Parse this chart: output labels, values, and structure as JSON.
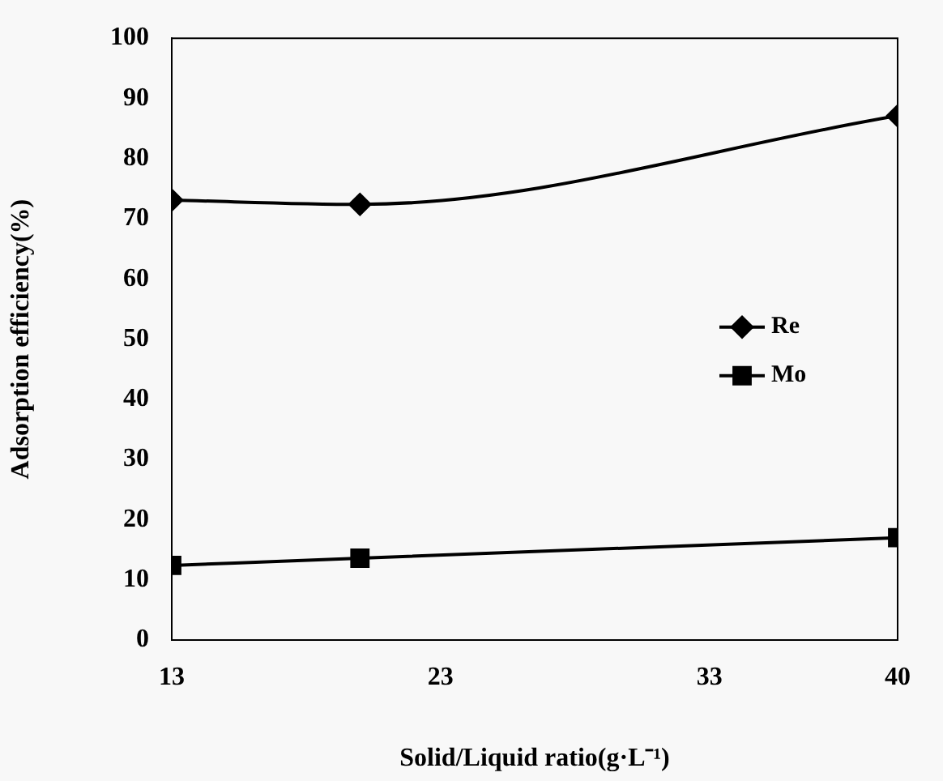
{
  "chart_data": {
    "type": "line",
    "xlabel": "Solid/Liquid ratio(g·L⁻¹)",
    "ylabel": "Adsorption efficiency(%)",
    "x": [
      13,
      20,
      40
    ],
    "xlim": [
      13,
      40
    ],
    "xticks": [
      13,
      23,
      33,
      40
    ],
    "ylim": [
      0,
      100
    ],
    "yticks": [
      0,
      10,
      20,
      30,
      40,
      50,
      60,
      70,
      80,
      90,
      100
    ],
    "grid": false,
    "legend": "right",
    "series": [
      {
        "name": "Re",
        "color": "#000000",
        "values": [
          73.1,
          72.4,
          87.1
        ],
        "marker": "diamond"
      },
      {
        "name": "Mo",
        "color": "#000000",
        "values": [
          12.4,
          13.6,
          17.0
        ],
        "marker": "square"
      }
    ]
  }
}
